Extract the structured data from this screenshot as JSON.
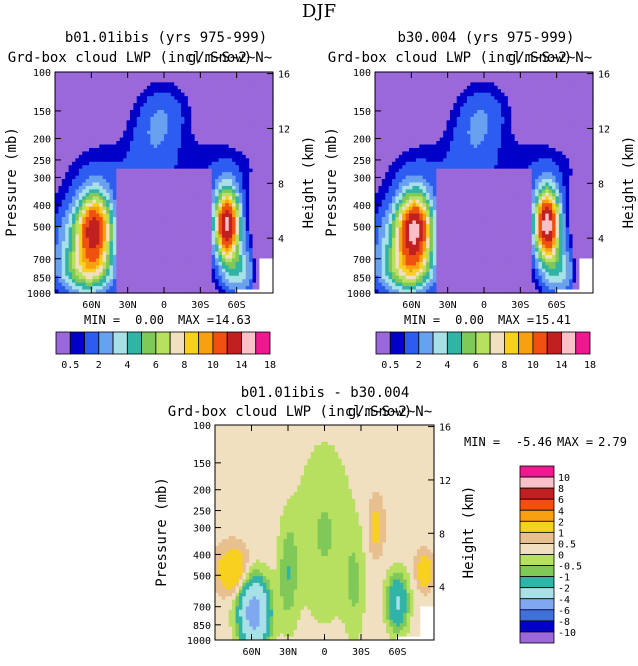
{
  "page_title": "DJF",
  "palette_main": [
    "#9b68da",
    "#0000c8",
    "#2c5cf0",
    "#6aa0f0",
    "#a8e0e8",
    "#30b4a8",
    "#80c858",
    "#b8e060",
    "#f0e0c0",
    "#f8d020",
    "#f8a010",
    "#f05010",
    "#c02020",
    "#f8c0c8",
    "#f01890"
  ],
  "palette_diff": [
    "#9b68da",
    "#0000c8",
    "#4070e0",
    "#80a8f0",
    "#a8e0e8",
    "#30b4a8",
    "#80c858",
    "#b8e060",
    "#f0e0c0",
    "#e8c090",
    "#f8d020",
    "#f8a010",
    "#f05010",
    "#c02020",
    "#f8c0c8",
    "#f01890"
  ],
  "chart_data": [
    {
      "type": "contour",
      "title": "b01.01ibis (yrs 975-999)",
      "subtitle": "Grd-box cloud LWP (incl.Snow)",
      "units_overlap": "g/m~S~2~N~",
      "ylabel_left": "Pressure (mb)",
      "ylabel_right": "Height (km)",
      "y_ticks": [
        "100",
        "150",
        "200",
        "250",
        "300",
        "400",
        "500",
        "700",
        "850",
        "1000"
      ],
      "y_values": [
        100,
        150,
        200,
        250,
        300,
        400,
        500,
        700,
        850,
        1000
      ],
      "height_ticks": [
        "16",
        "12",
        "8",
        "4"
      ],
      "height_values": [
        16,
        12,
        8,
        4
      ],
      "x_ticks": [
        "60N",
        "30N",
        "0",
        "30S",
        "60S"
      ],
      "x_values": [
        60,
        30,
        0,
        -30,
        -60
      ],
      "xlim": [
        90,
        -90
      ],
      "stats": {
        "min_label": "MIN =",
        "min": "0.00",
        "max_label": "MAX =",
        "max": "14.63"
      },
      "peak_nh": 12.5,
      "peak_sh": 14.63,
      "colorbar_labels": [
        "0.5",
        "2",
        "4",
        "6",
        "8",
        "10",
        "14",
        "18"
      ],
      "levels": [
        0.5,
        1,
        2,
        3,
        4,
        5,
        6,
        7,
        8,
        9,
        10,
        12,
        14,
        16,
        18
      ]
    },
    {
      "type": "contour",
      "title": "b30.004 (yrs 975-999)",
      "subtitle": "Grd-box cloud LWP (incl.Snow)",
      "units_overlap": "g/m~S~2~N~",
      "ylabel_left": "Pressure (mb)",
      "ylabel_right": "Height (km)",
      "y_ticks": [
        "100",
        "150",
        "200",
        "250",
        "300",
        "400",
        "500",
        "700",
        "850",
        "1000"
      ],
      "y_values": [
        100,
        150,
        200,
        250,
        300,
        400,
        500,
        700,
        850,
        1000
      ],
      "height_ticks": [
        "16",
        "12",
        "8",
        "4"
      ],
      "height_values": [
        16,
        12,
        8,
        4
      ],
      "x_ticks": [
        "60N",
        "30N",
        "0",
        "30S",
        "60S"
      ],
      "x_values": [
        60,
        30,
        0,
        -30,
        -60
      ],
      "xlim": [
        90,
        -90
      ],
      "stats": {
        "min_label": "MIN =",
        "min": "0.00",
        "max_label": "MAX =",
        "max": "15.41"
      },
      "peak_nh": 14.0,
      "peak_sh": 15.41,
      "colorbar_labels": [
        "0.5",
        "2",
        "4",
        "6",
        "8",
        "10",
        "14",
        "18"
      ],
      "levels": [
        0.5,
        1,
        2,
        3,
        4,
        5,
        6,
        7,
        8,
        9,
        10,
        12,
        14,
        16,
        18
      ]
    },
    {
      "type": "contour",
      "title": "b01.01ibis - b30.004",
      "subtitle": "Grd-box cloud LWP (incl.Snow)",
      "units_overlap": "g/m~S~2~N~",
      "ylabel_left": "Pressure (mb)",
      "ylabel_right": "Height (km)",
      "y_ticks": [
        "100",
        "150",
        "200",
        "250",
        "300",
        "400",
        "500",
        "700",
        "850",
        "1000"
      ],
      "y_values": [
        100,
        150,
        200,
        250,
        300,
        400,
        500,
        700,
        850,
        1000
      ],
      "height_ticks": [
        "16",
        "12",
        "8",
        "4"
      ],
      "height_values": [
        16,
        12,
        8,
        4
      ],
      "x_ticks": [
        "60N",
        "30N",
        "0",
        "30S",
        "60S"
      ],
      "x_values": [
        60,
        30,
        0,
        -30,
        -60
      ],
      "xlim": [
        90,
        -90
      ],
      "stats": {
        "min_label": "MIN =",
        "min": "-5.46",
        "max_label": "MAX =",
        "max": "2.79"
      },
      "colorbar_labels": [
        "10",
        "8",
        "6",
        "4",
        "2",
        "1",
        "0.5",
        "0",
        "-0.5",
        "-1",
        "-2",
        "-4",
        "-6",
        "-8",
        "-10"
      ],
      "levels": [
        -10,
        -8,
        -6,
        -4,
        -2,
        -1,
        -0.5,
        0,
        0.5,
        1,
        2,
        4,
        6,
        8,
        10
      ]
    }
  ]
}
